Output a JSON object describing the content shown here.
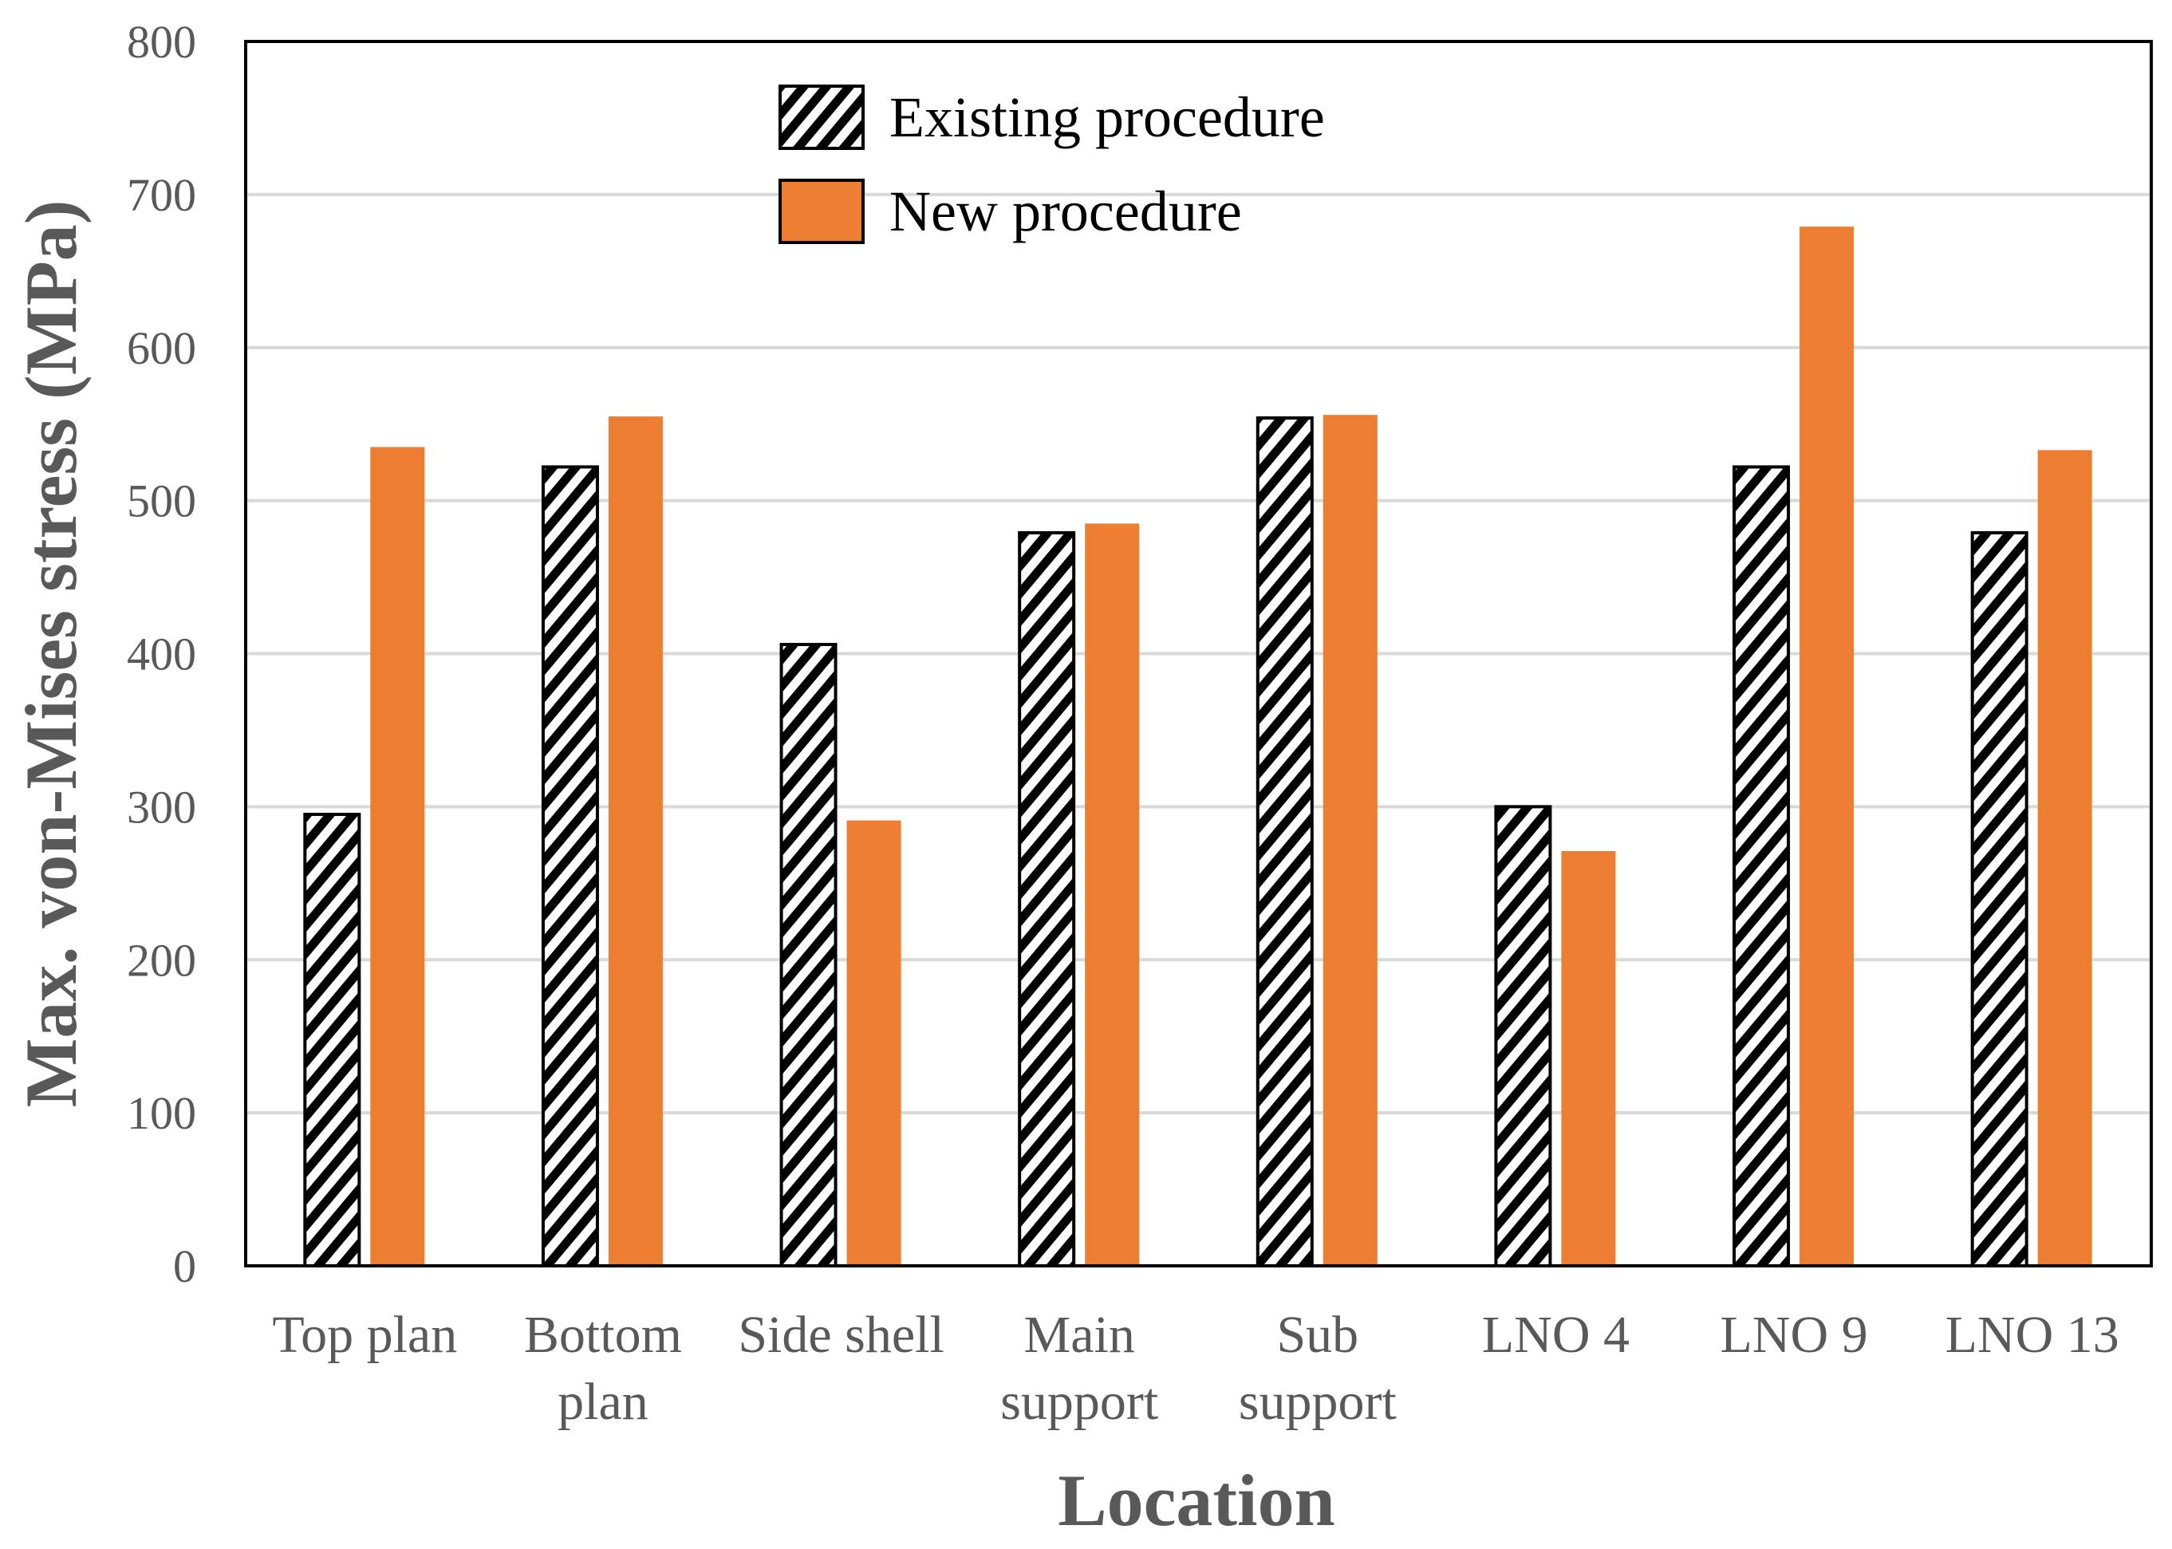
{
  "chart_data": {
    "type": "bar",
    "title": "",
    "xlabel": "Location",
    "ylabel": "Max. von-Mises stress (MPa)",
    "ylim": [
      0,
      800
    ],
    "yticks": [
      "0",
      "100",
      "200",
      "300",
      "400",
      "500",
      "600",
      "700",
      "800"
    ],
    "grid": true,
    "legend_position": "top-center",
    "categories": [
      [
        "Top plan"
      ],
      [
        "Bottom",
        "plan"
      ],
      [
        "Side shell"
      ],
      [
        "Main",
        "support"
      ],
      [
        "Sub",
        "support"
      ],
      [
        "LNO 4"
      ],
      [
        "LNO 9"
      ],
      [
        "LNO 13"
      ]
    ],
    "series": [
      {
        "name": "Existing procedure",
        "style": "hatched",
        "values": [
          295,
          522,
          406,
          479,
          554,
          300,
          522,
          479
        ]
      },
      {
        "name": "New procedure",
        "style": "solid",
        "values": [
          535,
          555,
          291,
          485,
          556,
          271,
          679,
          533
        ]
      }
    ],
    "colors": {
      "new": "#ED7D31",
      "hatch": "#000000",
      "grid": "#D9D9D9",
      "axis": "#000000"
    }
  }
}
